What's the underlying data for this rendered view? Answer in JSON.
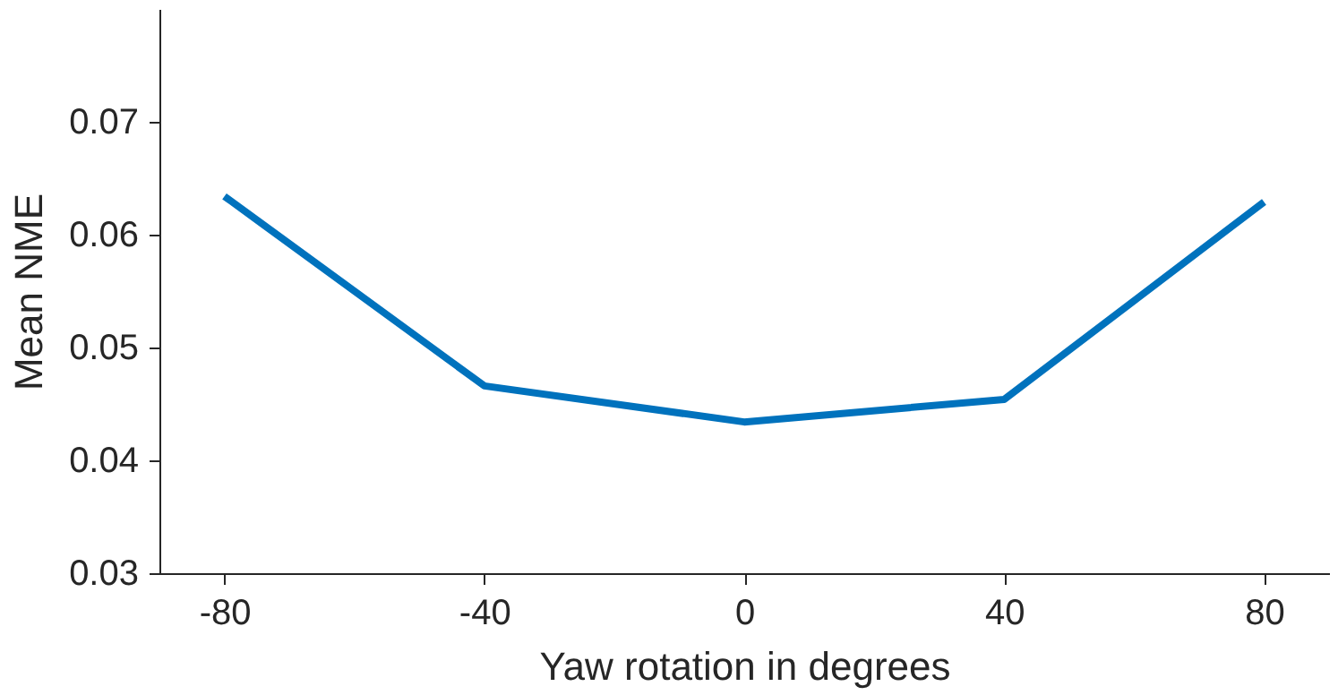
{
  "chart_data": {
    "type": "line",
    "xlabel": "Yaw rotation in degrees",
    "ylabel": "Mean NME",
    "x": [
      -80,
      -40,
      0,
      40,
      80
    ],
    "series": [
      {
        "color": "#0072bd",
        "values": [
          0.0634,
          0.0466,
          0.0434,
          0.0454,
          0.0629
        ]
      }
    ],
    "xlim": [
      -90,
      90
    ],
    "xticks": [
      -80,
      -40,
      0,
      40,
      80
    ],
    "ylim": [
      0.03,
      0.08
    ],
    "yticks": [
      0.03,
      0.04,
      0.05,
      0.06,
      0.07
    ],
    "grid": false,
    "marker": "none",
    "line_style": "solid"
  }
}
